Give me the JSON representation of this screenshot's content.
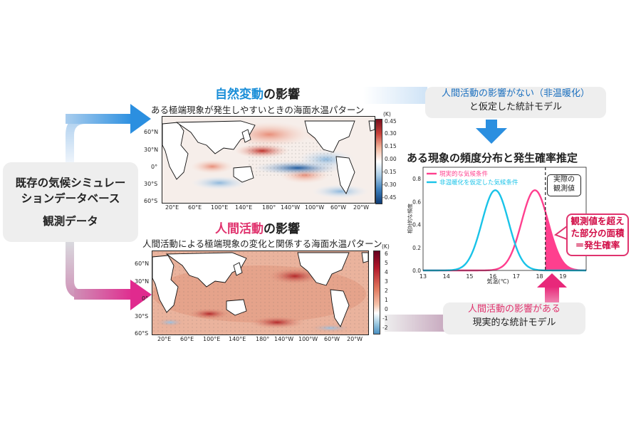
{
  "left_box": {
    "line1": "既存の気候シミュレー",
    "line2": "ションデータベース",
    "line3": "観測データ"
  },
  "natural": {
    "title_colored": "自然変動",
    "title_rest": "の影響",
    "subtitle": "ある極端現象が発生しやすいときの海面水温パターン",
    "lat_ticks": [
      "60°N",
      "30°N",
      "0°",
      "30°S",
      "60°S"
    ],
    "lon_ticks": [
      "20°E",
      "60°E",
      "100°E",
      "140°E",
      "180°",
      "140°W",
      "100°W",
      "60°W",
      "20°W"
    ],
    "cb_unit": "(K)",
    "cb_ticks": [
      "0.45",
      "0.30",
      "0.15",
      "0.00",
      "-0.15",
      "-0.30",
      "-0.45"
    ]
  },
  "human": {
    "title_colored": "人間活動",
    "title_rest": "の影響",
    "subtitle": "人間活動による極端現象の変化と関係する海面水温パターン",
    "lat_ticks": [
      "60°N",
      "30°N",
      "0°",
      "30°S",
      "60°S"
    ],
    "lon_ticks": [
      "20°E",
      "60°E",
      "100°E",
      "140°E",
      "180°",
      "140°W",
      "100°W",
      "60°W",
      "20°W"
    ],
    "cb_unit": "(K)",
    "cb_ticks": [
      "6",
      "5",
      "4",
      "3",
      "2",
      "1",
      "0",
      "-1",
      "-2"
    ]
  },
  "model_nowarming": {
    "line1": "人間活動の影響がない（非温暖化）",
    "line2": "と仮定した統計モデル"
  },
  "model_real": {
    "line1": "人間活動の影響がある",
    "line2": "現実的な統計モデル"
  },
  "dist_title": "ある現象の頻度分布と発生確率推定",
  "obs_label": {
    "line1": "実際の",
    "line2": "観測値"
  },
  "prob_box": {
    "line1": "観測値を超え",
    "line2": "た部分の面積",
    "line3": "＝発生確率"
  },
  "colors": {
    "blue": "#1a8ed8",
    "pink": "#e0336e",
    "cyan": "#19c3e8",
    "magenta": "#ff3f8e"
  },
  "chart_data": {
    "type": "line",
    "title": "",
    "xlabel": "気温(℃)",
    "ylabel": "相対的な頻度",
    "xlim": [
      13,
      20
    ],
    "ylim": [
      0,
      0.9
    ],
    "x_ticks": [
      "13",
      "14",
      "15",
      "16",
      "17",
      "18",
      "19"
    ],
    "y_ticks": [
      "0.0",
      "0.2",
      "0.4",
      "0.6",
      "0.8"
    ],
    "observed_value": 18.25,
    "legend_position": "top-left",
    "series": [
      {
        "name": "現実的な気候条件",
        "color": "#ff3f8e",
        "mean": 17.8,
        "sd": 0.57,
        "peak": 0.7
      },
      {
        "name": "非温暖化を仮定した気候条件",
        "color": "#19c3e8",
        "mean": 16.1,
        "sd": 0.57,
        "peak": 0.7
      }
    ]
  }
}
